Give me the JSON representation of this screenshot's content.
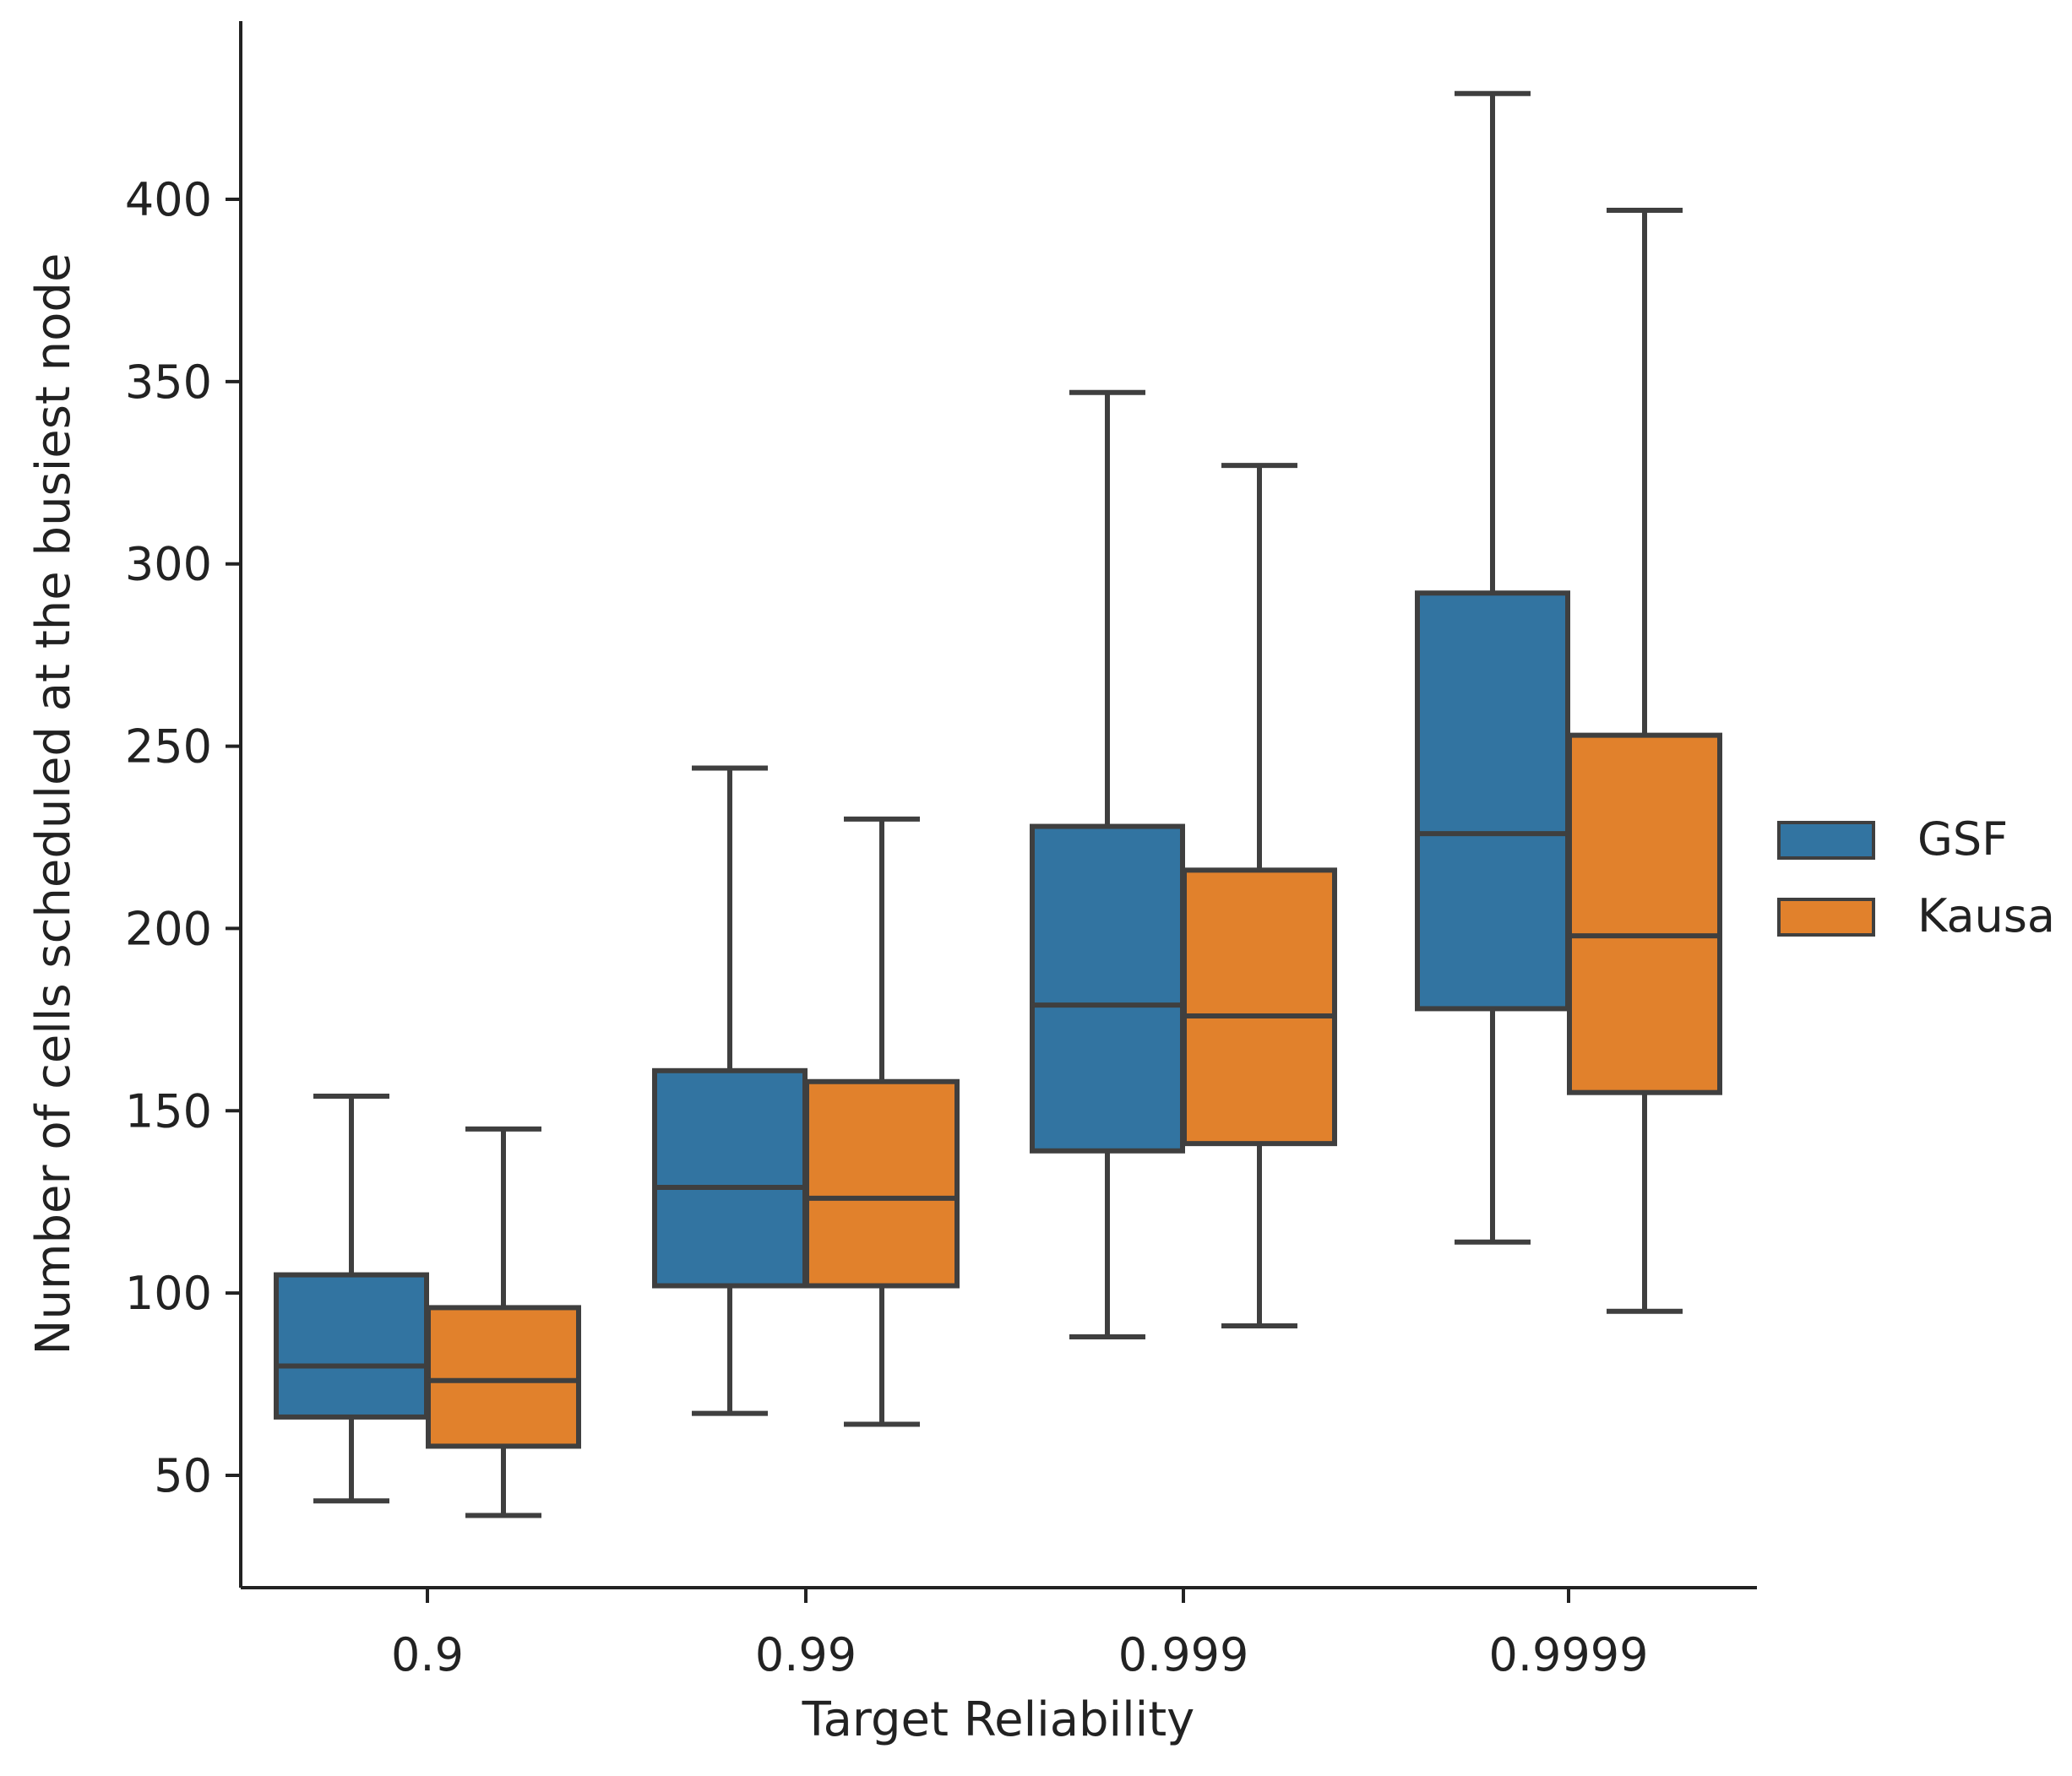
{
  "chart_data": {
    "type": "boxplot",
    "title": "",
    "xlabel": "Target Reliability",
    "ylabel": "Number of cells scheduled at the busiest node",
    "categories": [
      "0.9",
      "0.99",
      "0.999",
      "0.9999"
    ],
    "ylim": [
      10,
      445
    ],
    "yticks": [
      50,
      100,
      150,
      200,
      250,
      300,
      350,
      400
    ],
    "ytick_labels": [
      "50",
      "100",
      "150",
      "200",
      "250",
      "300",
      "350",
      "400"
    ],
    "grid": false,
    "legend_position": "center-right",
    "series": [
      {
        "name": "GSF",
        "color": "#3274a1",
        "boxes": [
          {
            "category": "0.9",
            "whislo": 43,
            "q1": 66,
            "median": 80,
            "q3": 105,
            "whishi": 154
          },
          {
            "category": "0.99",
            "whislo": 67,
            "q1": 102,
            "median": 129,
            "q3": 161,
            "whishi": 244
          },
          {
            "category": "0.999",
            "whislo": 88,
            "q1": 139,
            "median": 179,
            "q3": 228,
            "whishi": 347
          },
          {
            "category": "0.9999",
            "whislo": 114,
            "q1": 178,
            "median": 226,
            "q3": 292,
            "whishi": 429
          }
        ]
      },
      {
        "name": "Kausa",
        "color": "#e1812c",
        "boxes": [
          {
            "category": "0.9",
            "whislo": 39,
            "q1": 58,
            "median": 76,
            "q3": 96,
            "whishi": 145
          },
          {
            "category": "0.99",
            "whislo": 64,
            "q1": 102,
            "median": 126,
            "q3": 158,
            "whishi": 230
          },
          {
            "category": "0.999",
            "whislo": 91,
            "q1": 141,
            "median": 176,
            "q3": 216,
            "whishi": 327
          },
          {
            "category": "0.9999",
            "whislo": 95,
            "q1": 155,
            "median": 198,
            "q3": 253,
            "whishi": 397
          }
        ]
      }
    ],
    "edge_color": "#3f3f3f"
  }
}
